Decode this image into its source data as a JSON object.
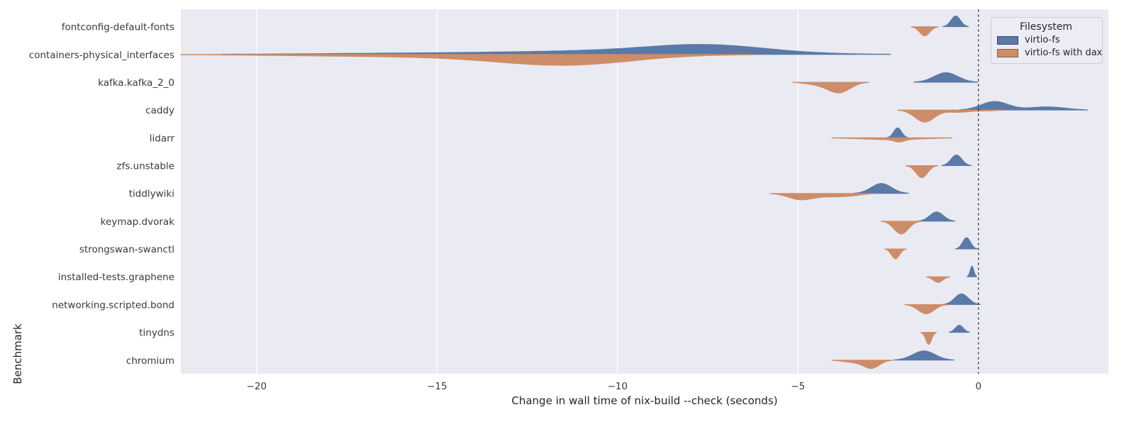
{
  "figure": {
    "kind": "seaborn-split-violin-plot",
    "background": "#ffffff",
    "plot_background": "#eaeaf2",
    "gridline_color": "#ffffff",
    "text_color": "#262626",
    "zero_line_color": "#1a1a1a"
  },
  "chart_data": {
    "type": "violin",
    "title": "",
    "xlabel": "Change in wall time of nix-build --check (seconds)",
    "ylabel": "Benchmark",
    "xlim": [
      -22.1,
      3.6
    ],
    "grid": true,
    "xticks": [
      -20,
      -15,
      -10,
      -5,
      0
    ],
    "xticklabels": [
      "−20",
      "−15",
      "−10",
      "−5",
      "0"
    ],
    "zero_reference_line": 0,
    "legend": {
      "title": "Filesystem",
      "position": "upper right",
      "items": [
        {
          "label": "virtio-fs",
          "color": "#5b79a7",
          "edge": "#39496b"
        },
        {
          "label": "virtio-fs with dax",
          "color": "#cd8d68",
          "edge": "#8f5c3c"
        }
      ]
    },
    "categories": [
      "fontconfig-default-fonts",
      "containers-physical_interfaces",
      "kafka.kafka_2_0",
      "caddy",
      "lidarr",
      "zfs.unstable",
      "tiddlywiki",
      "keymap.dvorak",
      "strongswan-swanctl",
      "installed-tests.graphene",
      "networking.scripted.bond",
      "tinydns",
      "chromium"
    ],
    "series_names": [
      "virtio-fs",
      "virtio-fs with dax"
    ],
    "rows": [
      {
        "benchmark": "fontconfig-default-fonts",
        "virtio_fs": {
          "peak_change_s": -0.63,
          "range_s": [
            -1.0,
            -0.35
          ],
          "components": [
            {
              "mu": -0.63,
              "sigma": 0.13,
              "amp": 15
            }
          ]
        },
        "virtio_fs_with_dax": {
          "peak_change_s": -1.49,
          "range_s": [
            -1.8,
            -1.2
          ],
          "components": [
            {
              "mu": -1.49,
              "sigma": 0.14,
              "amp": 13
            }
          ]
        }
      },
      {
        "benchmark": "containers-physical_interfaces",
        "virtio_fs": {
          "peak_change_s": -7.5,
          "range_s": [
            -20.9,
            -3.2
          ],
          "components": [
            {
              "mu": -7.5,
              "sigma": 1.6,
              "amp": 10
            },
            {
              "mu": -9.5,
              "sigma": 3.0,
              "amp": 5
            },
            {
              "mu": -15.5,
              "sigma": 3.2,
              "amp": 1.6
            }
          ]
        },
        "virtio_fs_with_dax": {
          "peak_change_s": -11.4,
          "range_s": [
            -20.9,
            -7.1
          ],
          "components": [
            {
              "mu": -11.4,
              "sigma": 1.8,
              "amp": 12.5
            },
            {
              "mu": -13.5,
              "sigma": 3.0,
              "amp": 3.5
            },
            {
              "mu": -18.0,
              "sigma": 2.5,
              "amp": 1.2
            }
          ]
        }
      },
      {
        "benchmark": "kafka.kafka_2_0",
        "virtio_fs": {
          "peak_change_s": -0.9,
          "range_s": [
            -1.8,
            -0.1
          ],
          "components": [
            {
              "mu": -0.9,
              "sigma": 0.33,
              "amp": 13.5
            }
          ]
        },
        "virtio_fs_with_dax": {
          "peak_change_s": -3.85,
          "range_s": [
            -4.75,
            -3.2
          ],
          "components": [
            {
              "mu": -3.85,
              "sigma": 0.3,
              "amp": 14
            },
            {
              "mu": -4.4,
              "sigma": 0.35,
              "amp": 3.5
            }
          ]
        }
      },
      {
        "benchmark": "caddy",
        "virtio_fs": {
          "peak_change_s": 0.45,
          "range_s": [
            -0.55,
            2.55
          ],
          "components": [
            {
              "mu": 0.45,
              "sigma": 0.38,
              "amp": 12
            },
            {
              "mu": 1.9,
              "sigma": 0.5,
              "amp": 4.5
            }
          ]
        },
        "virtio_fs_with_dax": {
          "peak_change_s": -1.49,
          "range_s": [
            -2.1,
            0.6
          ],
          "components": [
            {
              "mu": -1.49,
              "sigma": 0.27,
              "amp": 17
            },
            {
              "mu": -0.6,
              "sigma": 0.3,
              "amp": 3
            },
            {
              "mu": 0.1,
              "sigma": 0.4,
              "amp": 1.2
            }
          ]
        }
      },
      {
        "benchmark": "lidarr",
        "virtio_fs": {
          "peak_change_s": -2.24,
          "range_s": [
            -2.55,
            -1.95
          ],
          "components": [
            {
              "mu": -2.24,
              "sigma": 0.11,
              "amp": 14
            }
          ]
        },
        "virtio_fs_with_dax": {
          "peak_change_s": -2.2,
          "range_s": [
            -3.7,
            -1.3
          ],
          "components": [
            {
              "mu": -2.2,
              "sigma": 0.15,
              "amp": 3.5
            },
            {
              "mu": -2.4,
              "sigma": 0.85,
              "amp": 2.5
            }
          ]
        }
      },
      {
        "benchmark": "zfs.unstable",
        "virtio_fs": {
          "peak_change_s": -0.61,
          "range_s": [
            -0.95,
            -0.25
          ],
          "components": [
            {
              "mu": -0.61,
              "sigma": 0.15,
              "amp": 15
            }
          ]
        },
        "virtio_fs_with_dax": {
          "peak_change_s": -1.57,
          "range_s": [
            -1.95,
            -1.15
          ],
          "components": [
            {
              "mu": -1.57,
              "sigma": 0.16,
              "amp": 17
            }
          ]
        }
      },
      {
        "benchmark": "tiddlywiki",
        "virtio_fs": {
          "peak_change_s": -2.69,
          "range_s": [
            -3.3,
            -1.9
          ],
          "components": [
            {
              "mu": -2.69,
              "sigma": 0.28,
              "amp": 14
            }
          ]
        },
        "virtio_fs_with_dax": {
          "peak_change_s": -4.95,
          "range_s": [
            -5.6,
            -3.1
          ],
          "components": [
            {
              "mu": -4.95,
              "sigma": 0.33,
              "amp": 8
            },
            {
              "mu": -4.1,
              "sigma": 0.5,
              "amp": 4.5
            },
            {
              "mu": -3.5,
              "sigma": 0.3,
              "amp": 1.5
            }
          ]
        }
      },
      {
        "benchmark": "keymap.dvorak",
        "virtio_fs": {
          "peak_change_s": -1.16,
          "range_s": [
            -1.6,
            -0.7
          ],
          "components": [
            {
              "mu": -1.16,
              "sigma": 0.19,
              "amp": 13
            }
          ]
        },
        "virtio_fs_with_dax": {
          "peak_change_s": -2.14,
          "range_s": [
            -2.65,
            -1.65
          ],
          "components": [
            {
              "mu": -2.14,
              "sigma": 0.2,
              "amp": 18
            }
          ]
        }
      },
      {
        "benchmark": "strongswan-swanctl",
        "virtio_fs": {
          "peak_change_s": -0.33,
          "range_s": [
            -0.6,
            -0.05
          ],
          "components": [
            {
              "mu": -0.33,
              "sigma": 0.11,
              "amp": 16
            }
          ]
        },
        "virtio_fs_with_dax": {
          "peak_change_s": -2.3,
          "range_s": [
            -2.55,
            -2.05
          ],
          "components": [
            {
              "mu": -2.3,
              "sigma": 0.11,
              "amp": 14
            }
          ]
        }
      },
      {
        "benchmark": "installed-tests.graphene",
        "virtio_fs": {
          "peak_change_s": -0.18,
          "range_s": [
            -0.3,
            -0.05
          ],
          "components": [
            {
              "mu": -0.18,
              "sigma": 0.05,
              "amp": 15
            }
          ]
        },
        "virtio_fs_with_dax": {
          "peak_change_s": -1.12,
          "range_s": [
            -1.4,
            -0.85
          ],
          "components": [
            {
              "mu": -1.12,
              "sigma": 0.13,
              "amp": 8
            }
          ]
        }
      },
      {
        "benchmark": "networking.scripted.bond",
        "virtio_fs": {
          "peak_change_s": -0.47,
          "range_s": [
            -0.95,
            0.0
          ],
          "components": [
            {
              "mu": -0.47,
              "sigma": 0.19,
              "amp": 15
            }
          ]
        },
        "virtio_fs_with_dax": {
          "peak_change_s": -1.45,
          "range_s": [
            -2.0,
            -0.9
          ],
          "components": [
            {
              "mu": -1.45,
              "sigma": 0.22,
              "amp": 13
            }
          ]
        }
      },
      {
        "benchmark": "tinydns",
        "virtio_fs": {
          "peak_change_s": -0.53,
          "range_s": [
            -0.75,
            -0.2
          ],
          "components": [
            {
              "mu": -0.53,
              "sigma": 0.11,
              "amp": 10
            }
          ]
        },
        "virtio_fs_with_dax": {
          "peak_change_s": -1.38,
          "range_s": [
            -1.55,
            -1.15
          ],
          "components": [
            {
              "mu": -1.38,
              "sigma": 0.08,
              "amp": 17
            }
          ]
        }
      },
      {
        "benchmark": "chromium",
        "virtio_fs": {
          "peak_change_s": -1.51,
          "range_s": [
            -2.35,
            -0.8
          ],
          "components": [
            {
              "mu": -1.51,
              "sigma": 0.31,
              "amp": 13
            }
          ]
        },
        "virtio_fs_with_dax": {
          "peak_change_s": -2.96,
          "range_s": [
            -3.75,
            -2.5
          ],
          "components": [
            {
              "mu": -2.96,
              "sigma": 0.22,
              "amp": 11
            },
            {
              "mu": -3.45,
              "sigma": 0.3,
              "amp": 3
            }
          ]
        }
      }
    ]
  }
}
